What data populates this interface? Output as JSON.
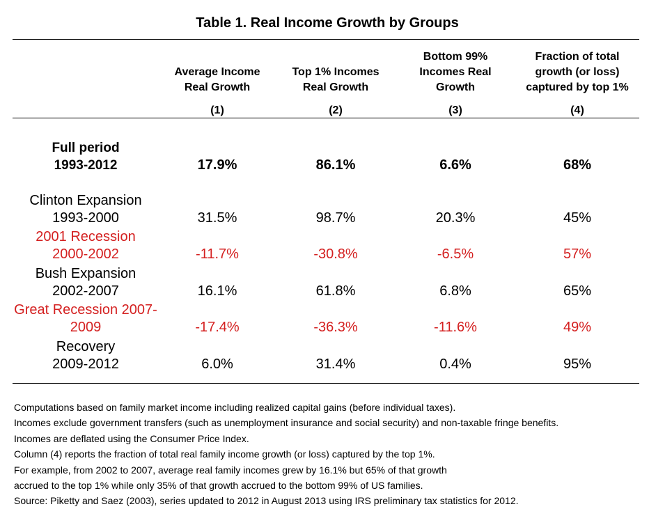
{
  "title": "Table 1. Real Income Growth by Groups",
  "columns": [
    {
      "header": [
        "Average Income",
        "Real Growth"
      ],
      "num": "(1)"
    },
    {
      "header": [
        "Top 1% Incomes",
        "Real Growth"
      ],
      "num": "(2)"
    },
    {
      "header": [
        "Bottom 99%",
        "Incomes Real",
        "Growth"
      ],
      "num": "(3)"
    },
    {
      "header": [
        "Fraction of total",
        "growth (or loss)",
        "captured by top 1%"
      ],
      "num": "(4)"
    }
  ],
  "rows": [
    {
      "label": [
        "Full period",
        "1993-2012"
      ],
      "values": [
        "17.9%",
        "86.1%",
        "6.6%",
        "68%"
      ],
      "bold": true,
      "color": "#000000"
    },
    {
      "label": [
        "Clinton Expansion",
        "1993-2000"
      ],
      "values": [
        "31.5%",
        "98.7%",
        "20.3%",
        "45%"
      ],
      "bold": false,
      "color": "#000000"
    },
    {
      "label": [
        "2001 Recession",
        "2000-2002"
      ],
      "values": [
        "-11.7%",
        "-30.8%",
        "-6.5%",
        "57%"
      ],
      "bold": false,
      "color": "#d42020"
    },
    {
      "label": [
        "Bush Expansion",
        "2002-2007"
      ],
      "values": [
        "16.1%",
        "61.8%",
        "6.8%",
        "65%"
      ],
      "bold": false,
      "color": "#000000"
    },
    {
      "label": [
        "Great Recession 2007-",
        "2009"
      ],
      "values": [
        "-17.4%",
        "-36.3%",
        "-11.6%",
        "49%"
      ],
      "bold": false,
      "color": "#d42020"
    },
    {
      "label": [
        "Recovery",
        "2009-2012"
      ],
      "values": [
        "6.0%",
        "31.4%",
        "0.4%",
        "95%"
      ],
      "bold": false,
      "color": "#000000"
    }
  ],
  "notes": [
    "Computations based on family market income including realized capital gains (before individual taxes).",
    "Incomes exclude government transfers (such as unemployment insurance and social security) and non-taxable fringe benefits.",
    "Incomes are deflated using the Consumer Price Index.",
    "Column (4) reports the fraction of total real family income growth (or loss) captured by the top 1%.",
    "For example, from 2002 to 2007, average real family incomes grew by 16.1% but 65% of that growth",
    "accrued to the top 1% while only 35% of that growth accrued to the bottom 99% of US families.",
    "Source: Piketty and Saez (2003), series updated to 2012 in August 2013 using IRS preliminary tax statistics for 2012."
  ]
}
